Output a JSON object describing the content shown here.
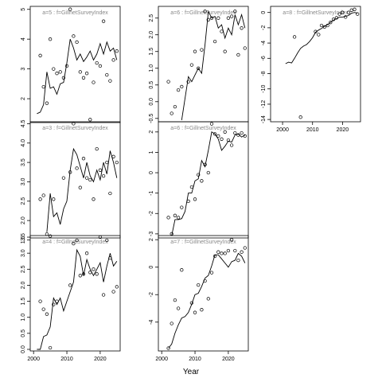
{
  "figure": {
    "xlabel": "Year"
  },
  "chart_data": [
    {
      "id": "a5",
      "type": "scatter",
      "title": "a=5 : f=GillnetSurveyIndex",
      "xlim": [
        1999,
        2026
      ],
      "ylim": [
        1.2,
        5.1
      ],
      "xticks": [],
      "yticks": [
        2,
        3,
        4,
        5
      ],
      "fit": {
        "x": [
          2001,
          2002,
          2003,
          2004,
          2005,
          2006,
          2007,
          2008,
          2009,
          2010,
          2011,
          2012,
          2013,
          2014,
          2015,
          2016,
          2017,
          2018,
          2019,
          2020,
          2021,
          2022,
          2023,
          2024,
          2025
        ],
        "y": [
          1.5,
          1.55,
          1.8,
          2.9,
          2.35,
          2.4,
          2.15,
          2.5,
          2.55,
          3.2,
          4.0,
          3.7,
          3.3,
          3.5,
          3.25,
          3.4,
          3.6,
          3.3,
          3.5,
          3.85,
          3.5,
          3.9,
          3.6,
          3.7,
          3.3
        ]
      },
      "obs": {
        "x": [
          2002,
          2003,
          2004,
          2005,
          2006,
          2007,
          2008,
          2009,
          2010,
          2011,
          2012,
          2013,
          2014,
          2015,
          2016,
          2017,
          2018,
          2019,
          2020,
          2021,
          2022,
          2023,
          2024,
          2025
        ],
        "y": [
          3.45,
          2.4,
          1.85,
          4.0,
          3.0,
          2.85,
          2.9,
          2.7,
          3.1,
          5.0,
          4.1,
          3.9,
          2.9,
          2.7,
          2.85,
          1.3,
          2.55,
          3.2,
          3.1,
          4.6,
          2.8,
          2.6,
          3.3,
          3.6
        ]
      }
    },
    {
      "id": "a3",
      "type": "scatter",
      "title": "a=3 : f=GillnetSurveyIndex",
      "xlim": [
        1999,
        2026
      ],
      "ylim": [
        1.55,
        4.55
      ],
      "xticks": [],
      "yticks": [
        1.5,
        2.0,
        2.5,
        3.0,
        3.5,
        4.0,
        4.5
      ],
      "fit": {
        "x": [
          2004,
          2005,
          2006,
          2007,
          2008,
          2009,
          2010,
          2011,
          2012,
          2013,
          2014,
          2015,
          2016,
          2017,
          2018,
          2019,
          2020,
          2021,
          2022,
          2023,
          2024,
          2025
        ],
        "y": [
          1.7,
          2.7,
          2.1,
          2.2,
          1.9,
          2.3,
          2.5,
          3.3,
          3.85,
          3.7,
          3.4,
          3.1,
          3.5,
          3.15,
          3.0,
          3.3,
          3.05,
          3.5,
          3.2,
          3.8,
          3.5,
          3.1
        ]
      },
      "obs": {
        "x": [
          2002,
          2003,
          2004,
          2005,
          2006,
          2009,
          2011,
          2012,
          2013,
          2014,
          2015,
          2016,
          2017,
          2018,
          2019,
          2020,
          2021,
          2022,
          2023,
          2024,
          2025
        ],
        "y": [
          2.55,
          2.65,
          1.65,
          1.6,
          2.55,
          3.1,
          3.25,
          4.5,
          3.35,
          2.85,
          3.6,
          3.1,
          3.05,
          2.55,
          3.85,
          3.3,
          3.15,
          3.5,
          2.7,
          3.65,
          3.5
        ]
      }
    },
    {
      "id": "a4",
      "type": "scatter",
      "title": "a=4 : f=GillnetSurveyIndex",
      "xlim": [
        1999,
        2026
      ],
      "ylim": [
        -0.05,
        3.55
      ],
      "xticks": [
        2000,
        2010,
        2020
      ],
      "yticks": [
        0.0,
        0.5,
        1.0,
        1.5,
        2.0,
        2.5,
        3.0,
        3.5
      ],
      "fit": {
        "x": [
          2001,
          2002,
          2003,
          2004,
          2005,
          2006,
          2007,
          2008,
          2009,
          2010,
          2011,
          2012,
          2013,
          2014,
          2015,
          2016,
          2017,
          2018,
          2019,
          2020,
          2021,
          2022,
          2023,
          2024,
          2025
        ],
        "y": [
          0.0,
          0.0,
          0.4,
          0.45,
          0.7,
          1.6,
          1.4,
          1.6,
          1.2,
          1.5,
          1.8,
          2.1,
          3.1,
          2.9,
          2.3,
          2.8,
          2.5,
          2.3,
          2.5,
          2.7,
          2.1,
          2.6,
          3.0,
          2.6,
          2.75
        ]
      },
      "obs": {
        "x": [
          2002,
          2003,
          2004,
          2005,
          2006,
          2007,
          2011,
          2012,
          2013,
          2014,
          2015,
          2016,
          2017,
          2018,
          2019,
          2020,
          2021,
          2022,
          2023,
          2024,
          2025
        ],
        "y": [
          1.5,
          1.25,
          1.1,
          0.05,
          1.4,
          1.5,
          2.0,
          3.3,
          3.4,
          2.3,
          2.35,
          3.0,
          2.4,
          2.5,
          2.35,
          3.5,
          1.7,
          3.4,
          2.85,
          1.8,
          1.95
        ]
      }
    },
    {
      "id": "a6",
      "type": "scatter",
      "title": "a=6 : f=GillnetSurveyIndex",
      "xlim": [
        1999,
        2026
      ],
      "ylim": [
        -0.6,
        2.85
      ],
      "xticks": [],
      "yticks": [
        -0.5,
        0.0,
        0.5,
        1.0,
        1.5,
        2.0,
        2.5
      ],
      "fit": {
        "x": [
          2006,
          2007,
          2008,
          2009,
          2010,
          2011,
          2012,
          2013,
          2014,
          2015,
          2016,
          2017,
          2018,
          2019,
          2020,
          2021,
          2022,
          2023,
          2024,
          2025
        ],
        "y": [
          -0.55,
          0.1,
          0.75,
          0.6,
          0.8,
          1.0,
          0.85,
          1.7,
          2.7,
          2.5,
          2.55,
          2.2,
          2.3,
          1.9,
          2.2,
          2.0,
          2.6,
          2.3,
          2.6,
          2.2
        ]
      },
      "obs": {
        "x": [
          2002,
          2003,
          2004,
          2005,
          2006,
          2008,
          2009,
          2010,
          2011,
          2012,
          2013,
          2014,
          2015,
          2016,
          2017,
          2018,
          2019,
          2020,
          2021,
          2022,
          2023,
          2024,
          2025
        ],
        "y": [
          0.6,
          -0.35,
          -0.15,
          0.35,
          0.45,
          0.6,
          1.1,
          1.5,
          1.0,
          1.55,
          2.7,
          2.45,
          2.5,
          1.8,
          2.5,
          2.1,
          1.5,
          2.5,
          2.55,
          2.7,
          1.4,
          2.2,
          1.6
        ]
      }
    },
    {
      "id": "a8",
      "type": "scatter",
      "title": "a=8 : f=GillnetSurveyIndex",
      "xlim": [
        1996,
        2026
      ],
      "ylim": [
        -14.3,
        0.8
      ],
      "xticks": [
        2000,
        2010,
        2020
      ],
      "yticks": [
        -14,
        -12,
        -10,
        -8,
        -6,
        -4,
        -2,
        0
      ],
      "fit": {
        "x": [
          2001,
          2002,
          2003,
          2004,
          2005,
          2006,
          2007,
          2008,
          2009,
          2010,
          2011,
          2012,
          2013,
          2014,
          2015,
          2016,
          2017,
          2018,
          2019,
          2020,
          2021,
          2022,
          2023,
          2024,
          2025
        ],
        "y": [
          -6.7,
          -6.5,
          -6.6,
          -6.0,
          -5.3,
          -4.7,
          -4.4,
          -4.2,
          -3.8,
          -3.3,
          -2.6,
          -2.3,
          -2.1,
          -1.8,
          -1.6,
          -1.3,
          -1.0,
          -0.8,
          -0.6,
          -0.6,
          -0.5,
          -0.4,
          -0.1,
          0.0,
          -0.1
        ]
      },
      "obs": {
        "x": [
          2004,
          2006,
          2011,
          2012,
          2013,
          2014,
          2015,
          2016,
          2017,
          2018,
          2019,
          2020,
          2021,
          2022,
          2023,
          2024,
          2025
        ],
        "y": [
          -3.2,
          -13.7,
          -2.5,
          -2.9,
          -1.7,
          -1.9,
          -1.7,
          -1.3,
          -0.9,
          -0.7,
          -0.2,
          0.0,
          -0.6,
          0.0,
          0.3,
          0.4,
          -0.2
        ]
      }
    },
    {
      "id": "a6b",
      "type": "scatter",
      "title": "a=6 : f=GillnetSurveyIndex",
      "xlim": [
        1999,
        2026
      ],
      "ylim": [
        -3.2,
        2.5
      ],
      "xticks": [],
      "yticks": [
        -3,
        -2,
        -1,
        0,
        1,
        2
      ],
      "fit": {
        "x": [
          2003,
          2004,
          2005,
          2006,
          2007,
          2008,
          2009,
          2010,
          2011,
          2012,
          2013,
          2014,
          2015,
          2016,
          2017,
          2018,
          2019,
          2020,
          2021,
          2022,
          2023,
          2024,
          2025
        ],
        "y": [
          -3.1,
          -2.3,
          -2.3,
          -2.25,
          -1.9,
          -1.0,
          -1.0,
          -0.4,
          -0.3,
          0.6,
          0.3,
          1.1,
          2.0,
          1.9,
          1.65,
          1.1,
          1.3,
          1.55,
          1.5,
          1.85,
          1.9,
          1.75,
          1.85
        ]
      },
      "obs": {
        "x": [
          2002,
          2003,
          2004,
          2005,
          2006,
          2008,
          2009,
          2010,
          2011,
          2012,
          2013,
          2014,
          2015,
          2016,
          2017,
          2018,
          2019,
          2020,
          2021,
          2022,
          2023,
          2024,
          2025
        ],
        "y": [
          -2.2,
          -3.0,
          -2.1,
          -2.2,
          -1.7,
          -1.4,
          -0.7,
          -1.3,
          -0.1,
          -0.4,
          0.4,
          0.0,
          2.4,
          1.9,
          1.8,
          1.65,
          2.0,
          1.6,
          1.35,
          1.95,
          1.85,
          1.95,
          1.8
        ]
      }
    },
    {
      "id": "a7",
      "type": "scatter",
      "title": "a=7 : f=GillnetSurveyIndex",
      "xlim": [
        1999,
        2026
      ],
      "ylim": [
        -6.1,
        2.3
      ],
      "xticks": [
        2000,
        2010,
        2020
      ],
      "yticks": [
        -4,
        -2,
        0,
        2
      ],
      "fit": {
        "x": [
          2002,
          2003,
          2004,
          2005,
          2006,
          2007,
          2008,
          2009,
          2010,
          2011,
          2012,
          2013,
          2014,
          2015,
          2016,
          2017,
          2018,
          2019,
          2020,
          2021,
          2022,
          2023,
          2024,
          2025
        ],
        "y": [
          -5.9,
          -5.6,
          -4.8,
          -4.2,
          -3.7,
          -3.6,
          -3.3,
          -2.7,
          -2.0,
          -1.9,
          -1.4,
          -0.8,
          -0.6,
          0.1,
          0.9,
          0.9,
          0.6,
          0.3,
          0.0,
          0.4,
          0.5,
          1.0,
          0.8,
          0.3
        ]
      },
      "obs": {
        "x": [
          2002,
          2003,
          2004,
          2005,
          2006,
          2009,
          2010,
          2011,
          2012,
          2013,
          2014,
          2015,
          2016,
          2017,
          2018,
          2019,
          2020,
          2021,
          2022,
          2023,
          2024,
          2025
        ],
        "y": [
          -5.9,
          -4.1,
          -2.4,
          -3.0,
          -0.2,
          -2.6,
          -3.3,
          -1.3,
          -3.1,
          -1.0,
          -2.3,
          -0.4,
          0.8,
          1.1,
          1.0,
          1.0,
          1.2,
          2.0,
          1.2,
          0.5,
          1.1,
          1.4
        ]
      }
    }
  ]
}
